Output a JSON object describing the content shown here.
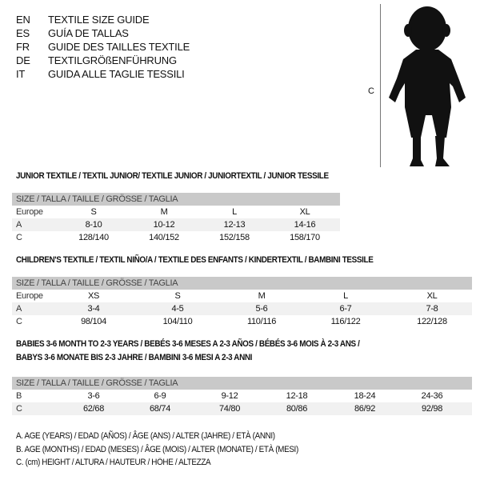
{
  "languages": [
    {
      "code": "EN",
      "text": "TEXTILE SIZE GUIDE"
    },
    {
      "code": "ES",
      "text": "GUÍA DE TALLAS"
    },
    {
      "code": "FR",
      "text": "GUIDE DES TAILLES TEXTILE"
    },
    {
      "code": "DE",
      "text": "TEXTILGRÖßENFÜHRUNG"
    },
    {
      "code": "IT",
      "text": "GUIDA ALLE TAGLIE TESSILI"
    }
  ],
  "figure": {
    "measure_label": "C",
    "icon": "child-silhouette"
  },
  "tables": [
    {
      "title": "JUNIOR TEXTILE / TEXTIL JUNIOR/ TEXTILE JUNIOR / JUNIORTEXTIL / JUNIOR TESSILE",
      "header": "SIZE / TALLA / TAILLE / GRÖSSE / TAGLIA",
      "rows": [
        {
          "label": "Europe",
          "values": [
            "S",
            "M",
            "L",
            "XL"
          ]
        },
        {
          "label": "A",
          "values": [
            "8-10",
            "10-12",
            "12-13",
            "14-16"
          ]
        },
        {
          "label": "C",
          "values": [
            "128/140",
            "140/152",
            "152/158",
            "158/170"
          ]
        }
      ]
    },
    {
      "title": "CHILDREN'S TEXTILE / TEXTIL NIÑO/A / TEXTILE DES ENFANTS / KINDERTEXTIL / BAMBINI TESSILE",
      "header": "SIZE / TALLA / TAILLE / GRÖSSE / TAGLIA",
      "rows": [
        {
          "label": "Europe",
          "values": [
            "XS",
            "S",
            "M",
            "L",
            "XL"
          ]
        },
        {
          "label": "A",
          "values": [
            "3-4",
            "4-5",
            "5-6",
            "6-7",
            "7-8"
          ]
        },
        {
          "label": "C",
          "values": [
            "98/104",
            "104/110",
            "110/116",
            "116/122",
            "122/128"
          ]
        }
      ]
    },
    {
      "title": "BABIES 3-6 MONTH TO 2-3 YEARS / BEBÉS 3-6 MESES A 2-3 AÑOS / BÉBÉS 3-6 MOIS À 2-3 ANS /",
      "title2": "BABYS 3-6 MONATE BIS 2-3 JAHRE / BAMBINI 3-6 MESI A 2-3 ANNI",
      "header": "SIZE / TALLA / TAILLE / GRÖSSE / TAGLIA",
      "rows": [
        {
          "label": "B",
          "values": [
            "3-6",
            "6-9",
            "9-12",
            "12-18",
            "18-24",
            "24-36"
          ]
        },
        {
          "label": "C",
          "values": [
            "62/68",
            "68/74",
            "74/80",
            "80/86",
            "86/92",
            "92/98"
          ]
        }
      ]
    }
  ],
  "notes": [
    "A. AGE (YEARS) / EDAD (AÑOS) / ÂGE (ANS) / ALTER (JAHRE) / ETÀ (ANNI)",
    "B. AGE (MONTHS) / EDAD (MESES) / ÂGE (MOIS) / ALTER (MONATE) / ETÀ (MESI)",
    "C. (cm) HEIGHT / ALTURA / HAUTEUR / HÖHE / ALTEZZA"
  ]
}
